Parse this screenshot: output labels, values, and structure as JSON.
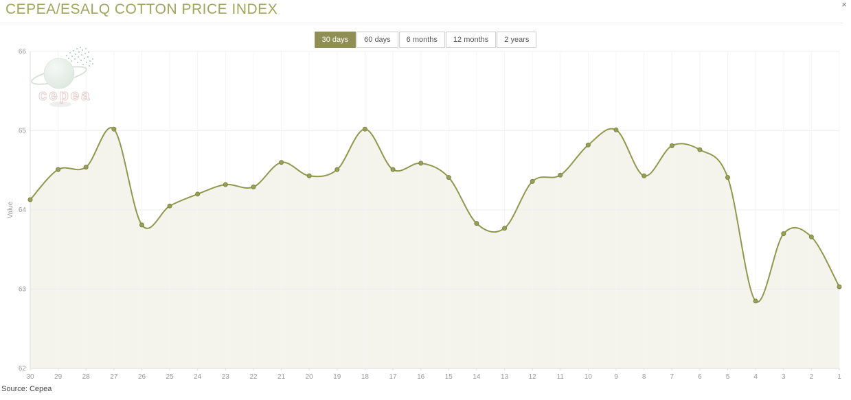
{
  "header": {
    "title": "CEPEA/ESALQ COTTON PRICE INDEX",
    "close_icon": "×"
  },
  "range_buttons": {
    "items": [
      {
        "label": "30 days",
        "selected": true
      },
      {
        "label": "60 days",
        "selected": false
      },
      {
        "label": "6 months",
        "selected": false
      },
      {
        "label": "12 months",
        "selected": false
      },
      {
        "label": "2 years",
        "selected": false
      }
    ]
  },
  "chart_data": {
    "type": "area",
    "title": "CEPEA/ESALQ COTTON PRICE INDEX",
    "xlabel": "",
    "ylabel": "Value",
    "categories": [
      "30",
      "29",
      "28",
      "27",
      "26",
      "25",
      "24",
      "23",
      "22",
      "21",
      "20",
      "19",
      "18",
      "17",
      "16",
      "15",
      "14",
      "13",
      "12",
      "11",
      "10",
      "9",
      "8",
      "7",
      "6",
      "5",
      "4",
      "3",
      "2",
      "1"
    ],
    "values": [
      64.13,
      64.51,
      64.54,
      65.02,
      63.81,
      64.05,
      64.2,
      64.32,
      64.29,
      64.6,
      64.43,
      64.51,
      65.02,
      64.51,
      64.59,
      64.41,
      63.83,
      63.77,
      64.36,
      64.44,
      64.82,
      65.01,
      64.43,
      64.81,
      64.76,
      64.41,
      62.85,
      63.7,
      63.66,
      63.03
    ],
    "ylim": [
      62,
      66
    ],
    "yticks": [
      "66",
      "65",
      "64",
      "63",
      "62"
    ],
    "grid": true,
    "legend": "none",
    "watermark": "cepea"
  },
  "footer": {
    "source": "Source: Cepea"
  },
  "colors": {
    "title": "#9fa65a",
    "accent": "#8f8e54",
    "line": "#8f984d",
    "marker_fill": "#99a156",
    "marker_stroke": "#7a8342",
    "area_fill": "#f4f4ed",
    "grid_h": "#ededed",
    "grid_v": "#f4f4f4",
    "axis_line": "#dddddd",
    "tick_text": "#999999",
    "button_text": "#555555",
    "source_text": "#444444"
  }
}
